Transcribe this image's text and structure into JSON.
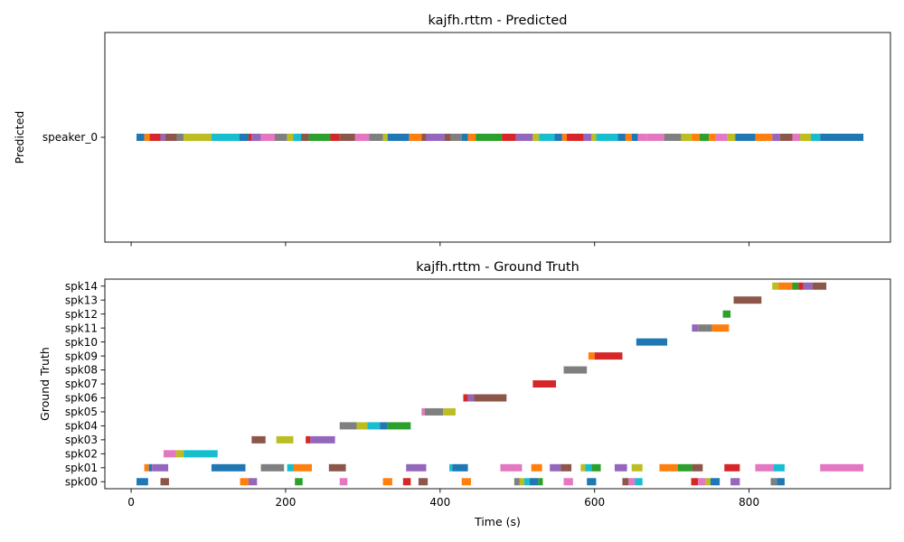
{
  "chart_data": [
    {
      "type": "timeline",
      "title": "kajfh.rttm - Predicted",
      "ylabel": "Predicted",
      "xlabel": "",
      "xlim": [
        -34,
        983
      ],
      "xticks": [
        0,
        200,
        400,
        600,
        800
      ],
      "show_xtick_labels": false,
      "rows": [
        "speaker_0"
      ],
      "segments": [
        {
          "row": "speaker_0",
          "start": 7,
          "end": 17,
          "color": "#1f77b4"
        },
        {
          "row": "speaker_0",
          "start": 17,
          "end": 24,
          "color": "#ff7f0e"
        },
        {
          "row": "speaker_0",
          "start": 24,
          "end": 38,
          "color": "#d62728"
        },
        {
          "row": "speaker_0",
          "start": 38,
          "end": 44,
          "color": "#9467bd"
        },
        {
          "row": "speaker_0",
          "start": 44,
          "end": 59,
          "color": "#8c564b"
        },
        {
          "row": "speaker_0",
          "start": 59,
          "end": 68,
          "color": "#7f7f7f"
        },
        {
          "row": "speaker_0",
          "start": 68,
          "end": 104,
          "color": "#bcbd22"
        },
        {
          "row": "speaker_0",
          "start": 104,
          "end": 140,
          "color": "#17becf"
        },
        {
          "row": "speaker_0",
          "start": 140,
          "end": 152,
          "color": "#1f77b4"
        },
        {
          "row": "speaker_0",
          "start": 152,
          "end": 156,
          "color": "#d62728"
        },
        {
          "row": "speaker_0",
          "start": 156,
          "end": 168,
          "color": "#9467bd"
        },
        {
          "row": "speaker_0",
          "start": 168,
          "end": 186,
          "color": "#e377c2"
        },
        {
          "row": "speaker_0",
          "start": 186,
          "end": 202,
          "color": "#7f7f7f"
        },
        {
          "row": "speaker_0",
          "start": 202,
          "end": 210,
          "color": "#bcbd22"
        },
        {
          "row": "speaker_0",
          "start": 210,
          "end": 220,
          "color": "#17becf"
        },
        {
          "row": "speaker_0",
          "start": 220,
          "end": 230,
          "color": "#8c564b"
        },
        {
          "row": "speaker_0",
          "start": 230,
          "end": 258,
          "color": "#2ca02c"
        },
        {
          "row": "speaker_0",
          "start": 258,
          "end": 270,
          "color": "#d62728"
        },
        {
          "row": "speaker_0",
          "start": 270,
          "end": 290,
          "color": "#8c564b"
        },
        {
          "row": "speaker_0",
          "start": 290,
          "end": 308,
          "color": "#e377c2"
        },
        {
          "row": "speaker_0",
          "start": 308,
          "end": 326,
          "color": "#7f7f7f"
        },
        {
          "row": "speaker_0",
          "start": 326,
          "end": 332,
          "color": "#bcbd22"
        },
        {
          "row": "speaker_0",
          "start": 332,
          "end": 360,
          "color": "#1f77b4"
        },
        {
          "row": "speaker_0",
          "start": 360,
          "end": 376,
          "color": "#ff7f0e"
        },
        {
          "row": "speaker_0",
          "start": 376,
          "end": 382,
          "color": "#8c564b"
        },
        {
          "row": "speaker_0",
          "start": 382,
          "end": 406,
          "color": "#9467bd"
        },
        {
          "row": "speaker_0",
          "start": 406,
          "end": 414,
          "color": "#8c564b"
        },
        {
          "row": "speaker_0",
          "start": 414,
          "end": 428,
          "color": "#7f7f7f"
        },
        {
          "row": "speaker_0",
          "start": 428,
          "end": 436,
          "color": "#1f77b4"
        },
        {
          "row": "speaker_0",
          "start": 436,
          "end": 446,
          "color": "#ff7f0e"
        },
        {
          "row": "speaker_0",
          "start": 446,
          "end": 480,
          "color": "#2ca02c"
        },
        {
          "row": "speaker_0",
          "start": 480,
          "end": 498,
          "color": "#d62728"
        },
        {
          "row": "speaker_0",
          "start": 498,
          "end": 520,
          "color": "#9467bd"
        },
        {
          "row": "speaker_0",
          "start": 520,
          "end": 528,
          "color": "#bcbd22"
        },
        {
          "row": "speaker_0",
          "start": 528,
          "end": 548,
          "color": "#17becf"
        },
        {
          "row": "speaker_0",
          "start": 548,
          "end": 558,
          "color": "#1f77b4"
        },
        {
          "row": "speaker_0",
          "start": 558,
          "end": 564,
          "color": "#ff7f0e"
        },
        {
          "row": "speaker_0",
          "start": 564,
          "end": 586,
          "color": "#d62728"
        },
        {
          "row": "speaker_0",
          "start": 586,
          "end": 596,
          "color": "#9467bd"
        },
        {
          "row": "speaker_0",
          "start": 596,
          "end": 602,
          "color": "#bcbd22"
        },
        {
          "row": "speaker_0",
          "start": 602,
          "end": 630,
          "color": "#17becf"
        },
        {
          "row": "speaker_0",
          "start": 630,
          "end": 640,
          "color": "#1f77b4"
        },
        {
          "row": "speaker_0",
          "start": 640,
          "end": 648,
          "color": "#ff7f0e"
        },
        {
          "row": "speaker_0",
          "start": 648,
          "end": 656,
          "color": "#1f77b4"
        },
        {
          "row": "speaker_0",
          "start": 656,
          "end": 668,
          "color": "#e377c2"
        },
        {
          "row": "speaker_0",
          "start": 668,
          "end": 690,
          "color": "#e377c2"
        },
        {
          "row": "speaker_0",
          "start": 690,
          "end": 712,
          "color": "#7f7f7f"
        },
        {
          "row": "speaker_0",
          "start": 712,
          "end": 726,
          "color": "#bcbd22"
        },
        {
          "row": "speaker_0",
          "start": 726,
          "end": 736,
          "color": "#ff7f0e"
        },
        {
          "row": "speaker_0",
          "start": 736,
          "end": 748,
          "color": "#2ca02c"
        },
        {
          "row": "speaker_0",
          "start": 748,
          "end": 756,
          "color": "#ff7f0e"
        },
        {
          "row": "speaker_0",
          "start": 756,
          "end": 772,
          "color": "#e377c2"
        },
        {
          "row": "speaker_0",
          "start": 772,
          "end": 782,
          "color": "#bcbd22"
        },
        {
          "row": "speaker_0",
          "start": 782,
          "end": 808,
          "color": "#1f77b4"
        },
        {
          "row": "speaker_0",
          "start": 808,
          "end": 830,
          "color": "#ff7f0e"
        },
        {
          "row": "speaker_0",
          "start": 830,
          "end": 840,
          "color": "#9467bd"
        },
        {
          "row": "speaker_0",
          "start": 840,
          "end": 856,
          "color": "#8c564b"
        },
        {
          "row": "speaker_0",
          "start": 856,
          "end": 866,
          "color": "#e377c2"
        },
        {
          "row": "speaker_0",
          "start": 866,
          "end": 880,
          "color": "#bcbd22"
        },
        {
          "row": "speaker_0",
          "start": 880,
          "end": 892,
          "color": "#17becf"
        },
        {
          "row": "speaker_0",
          "start": 892,
          "end": 948,
          "color": "#1f77b4"
        }
      ]
    },
    {
      "type": "timeline",
      "title": "kajfh.rttm - Ground Truth",
      "ylabel": "Ground Truth",
      "xlabel": "Time (s)",
      "xlim": [
        -34,
        983
      ],
      "xticks": [
        0,
        200,
        400,
        600,
        800
      ],
      "show_xtick_labels": true,
      "rows": [
        "spk00",
        "spk01",
        "spk02",
        "spk03",
        "spk04",
        "spk05",
        "spk06",
        "spk07",
        "spk08",
        "spk09",
        "spk10",
        "spk11",
        "spk12",
        "spk13",
        "spk14"
      ],
      "segments": [
        {
          "row": "spk00",
          "start": 7,
          "end": 22,
          "color": "#1f77b4"
        },
        {
          "row": "spk00",
          "start": 38,
          "end": 49,
          "color": "#8c564b"
        },
        {
          "row": "spk00",
          "start": 141,
          "end": 152,
          "color": "#ff7f0e"
        },
        {
          "row": "spk00",
          "start": 152,
          "end": 163,
          "color": "#9467bd"
        },
        {
          "row": "spk00",
          "start": 212,
          "end": 222,
          "color": "#2ca02c"
        },
        {
          "row": "spk00",
          "start": 270,
          "end": 280,
          "color": "#e377c2"
        },
        {
          "row": "spk00",
          "start": 326,
          "end": 338,
          "color": "#ff7f0e"
        },
        {
          "row": "spk00",
          "start": 352,
          "end": 362,
          "color": "#d62728"
        },
        {
          "row": "spk00",
          "start": 372,
          "end": 384,
          "color": "#8c564b"
        },
        {
          "row": "spk00",
          "start": 428,
          "end": 440,
          "color": "#ff7f0e"
        },
        {
          "row": "spk00",
          "start": 496,
          "end": 503,
          "color": "#7f7f7f"
        },
        {
          "row": "spk00",
          "start": 503,
          "end": 509,
          "color": "#bcbd22"
        },
        {
          "row": "spk00",
          "start": 509,
          "end": 516,
          "color": "#17becf"
        },
        {
          "row": "spk00",
          "start": 516,
          "end": 527,
          "color": "#1f77b4"
        },
        {
          "row": "spk00",
          "start": 527,
          "end": 533,
          "color": "#2ca02c"
        },
        {
          "row": "spk00",
          "start": 560,
          "end": 572,
          "color": "#e377c2"
        },
        {
          "row": "spk00",
          "start": 590,
          "end": 602,
          "color": "#1f77b4"
        },
        {
          "row": "spk00",
          "start": 636,
          "end": 644,
          "color": "#8c564b"
        },
        {
          "row": "spk00",
          "start": 644,
          "end": 652,
          "color": "#e377c2"
        },
        {
          "row": "spk00",
          "start": 652,
          "end": 662,
          "color": "#17becf"
        },
        {
          "row": "spk00",
          "start": 725,
          "end": 734,
          "color": "#d62728"
        },
        {
          "row": "spk00",
          "start": 734,
          "end": 744,
          "color": "#e377c2"
        },
        {
          "row": "spk00",
          "start": 744,
          "end": 750,
          "color": "#bcbd22"
        },
        {
          "row": "spk00",
          "start": 750,
          "end": 762,
          "color": "#1f77b4"
        },
        {
          "row": "spk00",
          "start": 776,
          "end": 788,
          "color": "#9467bd"
        },
        {
          "row": "spk00",
          "start": 828,
          "end": 836,
          "color": "#7f7f7f"
        },
        {
          "row": "spk00",
          "start": 836,
          "end": 846,
          "color": "#1f77b4"
        },
        {
          "row": "spk01",
          "start": 17,
          "end": 23,
          "color": "#ff7f0e"
        },
        {
          "row": "spk01",
          "start": 23,
          "end": 27,
          "color": "#1f77b4"
        },
        {
          "row": "spk01",
          "start": 27,
          "end": 48,
          "color": "#9467bd"
        },
        {
          "row": "spk01",
          "start": 104,
          "end": 148,
          "color": "#1f77b4"
        },
        {
          "row": "spk01",
          "start": 168,
          "end": 198,
          "color": "#7f7f7f"
        },
        {
          "row": "spk01",
          "start": 202,
          "end": 210,
          "color": "#17becf"
        },
        {
          "row": "spk01",
          "start": 210,
          "end": 234,
          "color": "#ff7f0e"
        },
        {
          "row": "spk01",
          "start": 256,
          "end": 278,
          "color": "#8c564b"
        },
        {
          "row": "spk01",
          "start": 356,
          "end": 382,
          "color": "#9467bd"
        },
        {
          "row": "spk01",
          "start": 412,
          "end": 416,
          "color": "#17becf"
        },
        {
          "row": "spk01",
          "start": 416,
          "end": 436,
          "color": "#1f77b4"
        },
        {
          "row": "spk01",
          "start": 478,
          "end": 506,
          "color": "#e377c2"
        },
        {
          "row": "spk01",
          "start": 518,
          "end": 532,
          "color": "#ff7f0e"
        },
        {
          "row": "spk01",
          "start": 542,
          "end": 556,
          "color": "#9467bd"
        },
        {
          "row": "spk01",
          "start": 556,
          "end": 570,
          "color": "#8c564b"
        },
        {
          "row": "spk01",
          "start": 582,
          "end": 588,
          "color": "#bcbd22"
        },
        {
          "row": "spk01",
          "start": 588,
          "end": 596,
          "color": "#17becf"
        },
        {
          "row": "spk01",
          "start": 596,
          "end": 608,
          "color": "#2ca02c"
        },
        {
          "row": "spk01",
          "start": 626,
          "end": 642,
          "color": "#9467bd"
        },
        {
          "row": "spk01",
          "start": 648,
          "end": 662,
          "color": "#bcbd22"
        },
        {
          "row": "spk01",
          "start": 684,
          "end": 708,
          "color": "#ff7f0e"
        },
        {
          "row": "spk01",
          "start": 708,
          "end": 726,
          "color": "#2ca02c"
        },
        {
          "row": "spk01",
          "start": 726,
          "end": 740,
          "color": "#8c564b"
        },
        {
          "row": "spk01",
          "start": 768,
          "end": 788,
          "color": "#d62728"
        },
        {
          "row": "spk01",
          "start": 808,
          "end": 832,
          "color": "#e377c2"
        },
        {
          "row": "spk01",
          "start": 832,
          "end": 846,
          "color": "#17becf"
        },
        {
          "row": "spk01",
          "start": 892,
          "end": 948,
          "color": "#e377c2"
        },
        {
          "row": "spk02",
          "start": 42,
          "end": 58,
          "color": "#e377c2"
        },
        {
          "row": "spk02",
          "start": 58,
          "end": 68,
          "color": "#bcbd22"
        },
        {
          "row": "spk02",
          "start": 68,
          "end": 112,
          "color": "#17becf"
        },
        {
          "row": "spk03",
          "start": 156,
          "end": 174,
          "color": "#8c564b"
        },
        {
          "row": "spk03",
          "start": 188,
          "end": 210,
          "color": "#bcbd22"
        },
        {
          "row": "spk03",
          "start": 226,
          "end": 232,
          "color": "#d62728"
        },
        {
          "row": "spk03",
          "start": 232,
          "end": 264,
          "color": "#9467bd"
        },
        {
          "row": "spk04",
          "start": 270,
          "end": 292,
          "color": "#7f7f7f"
        },
        {
          "row": "spk04",
          "start": 292,
          "end": 306,
          "color": "#bcbd22"
        },
        {
          "row": "spk04",
          "start": 306,
          "end": 322,
          "color": "#17becf"
        },
        {
          "row": "spk04",
          "start": 322,
          "end": 332,
          "color": "#1f77b4"
        },
        {
          "row": "spk04",
          "start": 332,
          "end": 362,
          "color": "#2ca02c"
        },
        {
          "row": "spk05",
          "start": 376,
          "end": 380,
          "color": "#e377c2"
        },
        {
          "row": "spk05",
          "start": 380,
          "end": 404,
          "color": "#7f7f7f"
        },
        {
          "row": "spk05",
          "start": 404,
          "end": 420,
          "color": "#bcbd22"
        },
        {
          "row": "spk06",
          "start": 430,
          "end": 436,
          "color": "#d62728"
        },
        {
          "row": "spk06",
          "start": 436,
          "end": 444,
          "color": "#9467bd"
        },
        {
          "row": "spk06",
          "start": 444,
          "end": 486,
          "color": "#8c564b"
        },
        {
          "row": "spk07",
          "start": 520,
          "end": 550,
          "color": "#d62728"
        },
        {
          "row": "spk08",
          "start": 560,
          "end": 590,
          "color": "#7f7f7f"
        },
        {
          "row": "spk09",
          "start": 592,
          "end": 600,
          "color": "#ff7f0e"
        },
        {
          "row": "spk09",
          "start": 600,
          "end": 636,
          "color": "#d62728"
        },
        {
          "row": "spk10",
          "start": 654,
          "end": 694,
          "color": "#1f77b4"
        },
        {
          "row": "spk11",
          "start": 726,
          "end": 734,
          "color": "#9467bd"
        },
        {
          "row": "spk11",
          "start": 734,
          "end": 752,
          "color": "#7f7f7f"
        },
        {
          "row": "spk11",
          "start": 752,
          "end": 774,
          "color": "#ff7f0e"
        },
        {
          "row": "spk12",
          "start": 766,
          "end": 776,
          "color": "#2ca02c"
        },
        {
          "row": "spk13",
          "start": 780,
          "end": 816,
          "color": "#8c564b"
        },
        {
          "row": "spk14",
          "start": 830,
          "end": 838,
          "color": "#bcbd22"
        },
        {
          "row": "spk14",
          "start": 838,
          "end": 856,
          "color": "#ff7f0e"
        },
        {
          "row": "spk14",
          "start": 856,
          "end": 864,
          "color": "#2ca02c"
        },
        {
          "row": "spk14",
          "start": 864,
          "end": 870,
          "color": "#d62728"
        },
        {
          "row": "spk14",
          "start": 870,
          "end": 882,
          "color": "#9467bd"
        },
        {
          "row": "spk14",
          "start": 882,
          "end": 900,
          "color": "#8c564b"
        }
      ]
    }
  ]
}
